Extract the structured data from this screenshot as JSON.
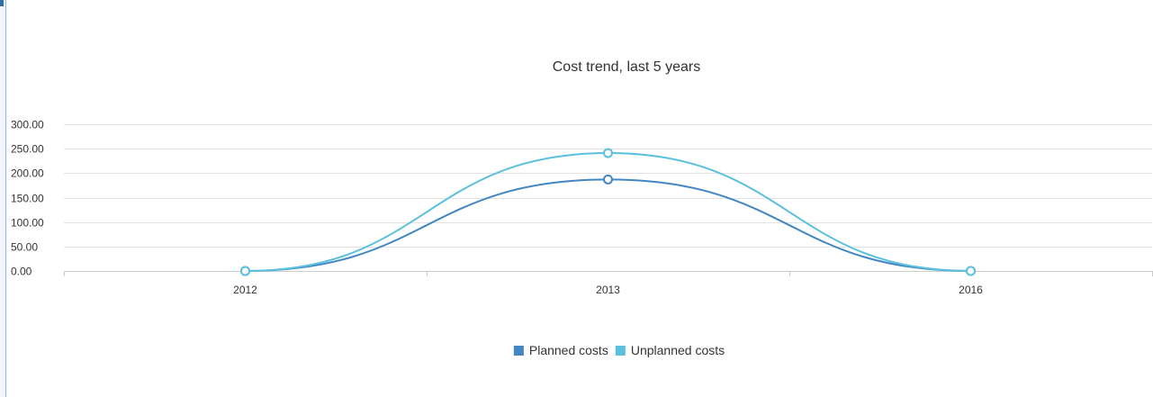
{
  "chart_data": {
    "type": "line",
    "title": "Cost trend, last 5 years",
    "xlabel": "",
    "ylabel": "",
    "categories": [
      "2012",
      "2013",
      "2016"
    ],
    "y_ticks": [
      "0.00",
      "50.00",
      "100.00",
      "150.00",
      "200.00",
      "250.00",
      "300.00"
    ],
    "ylim": [
      0,
      300
    ],
    "grid": true,
    "smooth": true,
    "legend_position": "bottom",
    "series": [
      {
        "name": "Planned costs",
        "values": [
          0,
          187,
          0
        ],
        "color": "#4286c4"
      },
      {
        "name": "Unplanned costs",
        "values": [
          0,
          241,
          0
        ],
        "color": "#5bc0de"
      }
    ]
  }
}
